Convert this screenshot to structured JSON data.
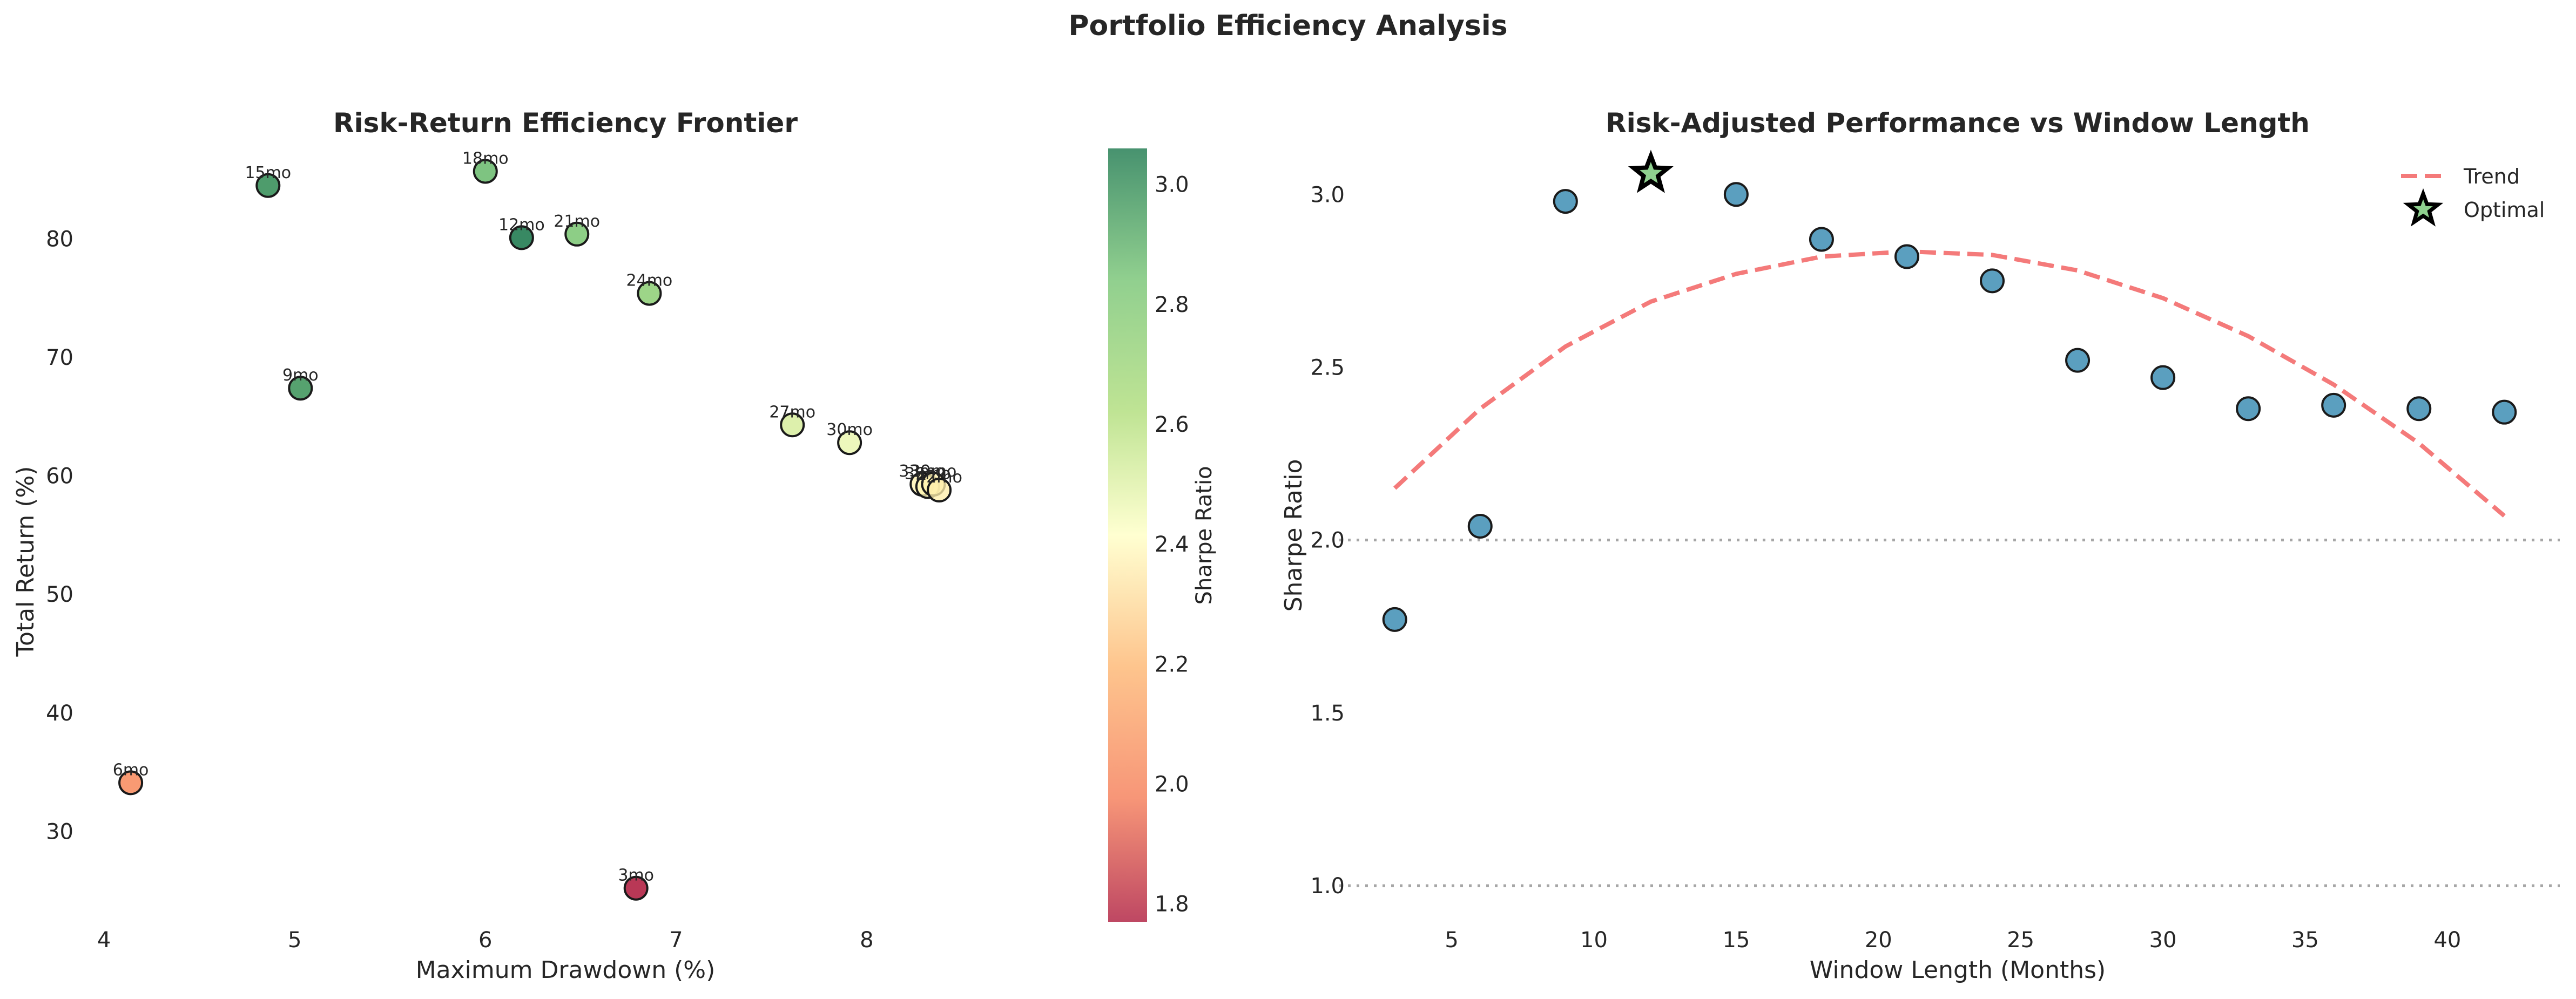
{
  "figure": {
    "title": "Portfolio Efficiency Analysis"
  },
  "chart_data": [
    {
      "type": "scatter",
      "title": "Risk-Return Efficiency Frontier",
      "xlabel": "Maximum Drawdown (%)",
      "ylabel": "Total Return (%)",
      "xlim": [
        3.95,
        8.85
      ],
      "ylim": [
        22.5,
        89
      ],
      "xticks": [
        4,
        5,
        6,
        7,
        8
      ],
      "yticks": [
        30,
        40,
        50,
        60,
        70,
        80
      ],
      "grid": false,
      "colorbar": {
        "label": "Sharpe Ratio",
        "range": [
          1.77,
          3.06
        ],
        "ticks": [
          1.8,
          2.0,
          2.2,
          2.4,
          2.6,
          2.8,
          3.0
        ],
        "colormap": [
          "#a50026",
          "#f46d43",
          "#fdae61",
          "#ffffbf",
          "#a6d96a",
          "#66bd63",
          "#006837"
        ]
      },
      "points": [
        {
          "label": "3mo",
          "x": 6.79,
          "y": 25.2,
          "sharpe": 1.77
        },
        {
          "label": "6mo",
          "x": 4.14,
          "y": 34.1,
          "sharpe": 2.04
        },
        {
          "label": "9mo",
          "x": 5.03,
          "y": 67.4,
          "sharpe": 2.98
        },
        {
          "label": "12mo",
          "x": 6.19,
          "y": 80.1,
          "sharpe": 3.06
        },
        {
          "label": "15mo",
          "x": 4.86,
          "y": 84.5,
          "sharpe": 3.0
        },
        {
          "label": "18mo",
          "x": 6.0,
          "y": 85.7,
          "sharpe": 2.87
        },
        {
          "label": "21mo",
          "x": 6.48,
          "y": 80.4,
          "sharpe": 2.82
        },
        {
          "label": "24mo",
          "x": 6.86,
          "y": 75.4,
          "sharpe": 2.75
        },
        {
          "label": "27mo",
          "x": 7.61,
          "y": 64.3,
          "sharpe": 2.52
        },
        {
          "label": "30mo",
          "x": 7.91,
          "y": 62.8,
          "sharpe": 2.47
        },
        {
          "label": "33mo",
          "x": 8.29,
          "y": 59.3,
          "sharpe": 2.38
        },
        {
          "label": "36mo",
          "x": 8.32,
          "y": 59.1,
          "sharpe": 2.39
        },
        {
          "label": "39mo",
          "x": 8.35,
          "y": 59.3,
          "sharpe": 2.38
        },
        {
          "label": "42mo",
          "x": 8.38,
          "y": 58.8,
          "sharpe": 2.37
        }
      ]
    },
    {
      "type": "scatter",
      "title": "Risk-Adjusted Performance vs Window Length",
      "xlabel": "Window Length (Months)",
      "ylabel": "Sharpe Ratio",
      "xlim": [
        1.05,
        43.95
      ],
      "ylim": [
        0.9,
        3.18
      ],
      "xticks": [
        5,
        10,
        15,
        20,
        25,
        30,
        35,
        40
      ],
      "yticks": [
        1.0,
        1.5,
        2.0,
        2.5,
        3.0
      ],
      "yticklabels": [
        "1.0",
        "1.5",
        "2.0",
        "2.5",
        "3.0"
      ],
      "grid": false,
      "reference_lines": [
        2.0,
        1.0
      ],
      "legend": {
        "placement": "top-right",
        "entries": [
          "Trend",
          "Optimal"
        ]
      },
      "colors": {
        "points": "#5b9fbf",
        "trend": "#f47a7a",
        "optimal": "#8fd18f"
      },
      "series": [
        {
          "type": "scatter",
          "x": [
            3,
            6,
            9,
            12,
            15,
            18,
            21,
            24,
            27,
            30,
            33,
            36,
            39,
            42
          ],
          "values": [
            1.77,
            2.04,
            2.98,
            3.06,
            3.0,
            2.87,
            2.82,
            2.75,
            2.52,
            2.47,
            2.38,
            2.39,
            2.38,
            2.37
          ]
        },
        {
          "name": "Trend",
          "type": "line",
          "x": [
            3,
            6,
            9,
            12,
            15,
            18,
            21,
            24,
            27,
            30,
            33,
            36,
            39,
            42
          ],
          "values": [
            2.15,
            2.38,
            2.56,
            2.69,
            2.77,
            2.82,
            2.835,
            2.825,
            2.78,
            2.7,
            2.59,
            2.45,
            2.28,
            2.07
          ]
        },
        {
          "name": "Optimal",
          "type": "marker",
          "x": [
            12
          ],
          "values": [
            3.06
          ]
        }
      ]
    }
  ]
}
